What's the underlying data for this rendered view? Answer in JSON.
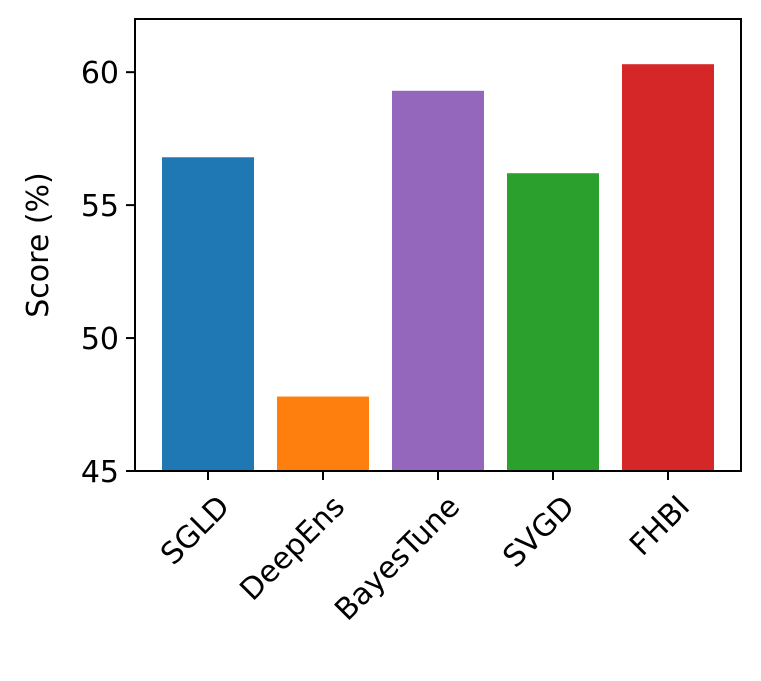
{
  "chart_data": {
    "type": "bar",
    "categories": [
      "SGLD",
      "DeepEns",
      "BayesTune",
      "SVGD",
      "FHBI"
    ],
    "values": [
      56.8,
      47.8,
      59.3,
      56.2,
      60.3
    ],
    "colors": [
      "#1f77b4",
      "#ff7f0e",
      "#9467bd",
      "#2ca02c",
      "#d62728"
    ],
    "title": "",
    "xlabel": "",
    "ylabel": "Score (%)",
    "ylim": [
      45,
      62
    ],
    "yticks": [
      45,
      50,
      55,
      60
    ],
    "ytick_labels": [
      "45",
      "50",
      "55",
      "60"
    ],
    "grid": false,
    "xtick_rotation": -45
  }
}
